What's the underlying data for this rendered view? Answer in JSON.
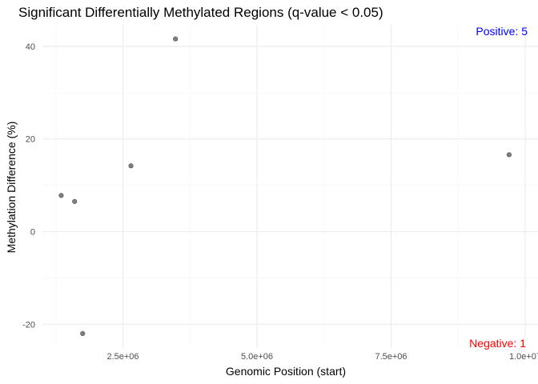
{
  "chart_data": {
    "type": "scatter",
    "title": "Significant Differentially Methylated Regions (q-value < 0.05)",
    "xlabel": "Genomic Position (start)",
    "ylabel": "Methylation Difference (%)",
    "xlim": [
      1000000,
      10000000
    ],
    "ylim": [
      -25,
      44
    ],
    "x_ticks": [
      2500000,
      5000000,
      7500000,
      10000000
    ],
    "x_tick_labels": [
      "2.5e+06",
      "5.0e+06",
      "7.5e+06",
      "1.0e+07"
    ],
    "y_ticks": [
      -20,
      0,
      20,
      40
    ],
    "y_tick_labels": [
      "-20",
      "0",
      "20",
      "40"
    ],
    "points": [
      {
        "x": 1350000,
        "y": 7.8
      },
      {
        "x": 1600000,
        "y": 6.5
      },
      {
        "x": 1750000,
        "y": -22.0
      },
      {
        "x": 2650000,
        "y": 14.2
      },
      {
        "x": 3480000,
        "y": 41.6
      },
      {
        "x": 9700000,
        "y": 16.6
      }
    ],
    "grid": true,
    "annotations": [
      {
        "text": "Positive: 5",
        "color": "#0000ff",
        "position": "top-right"
      },
      {
        "text": "Negative: 1",
        "color": "#ff0000",
        "position": "bottom-right"
      }
    ]
  }
}
